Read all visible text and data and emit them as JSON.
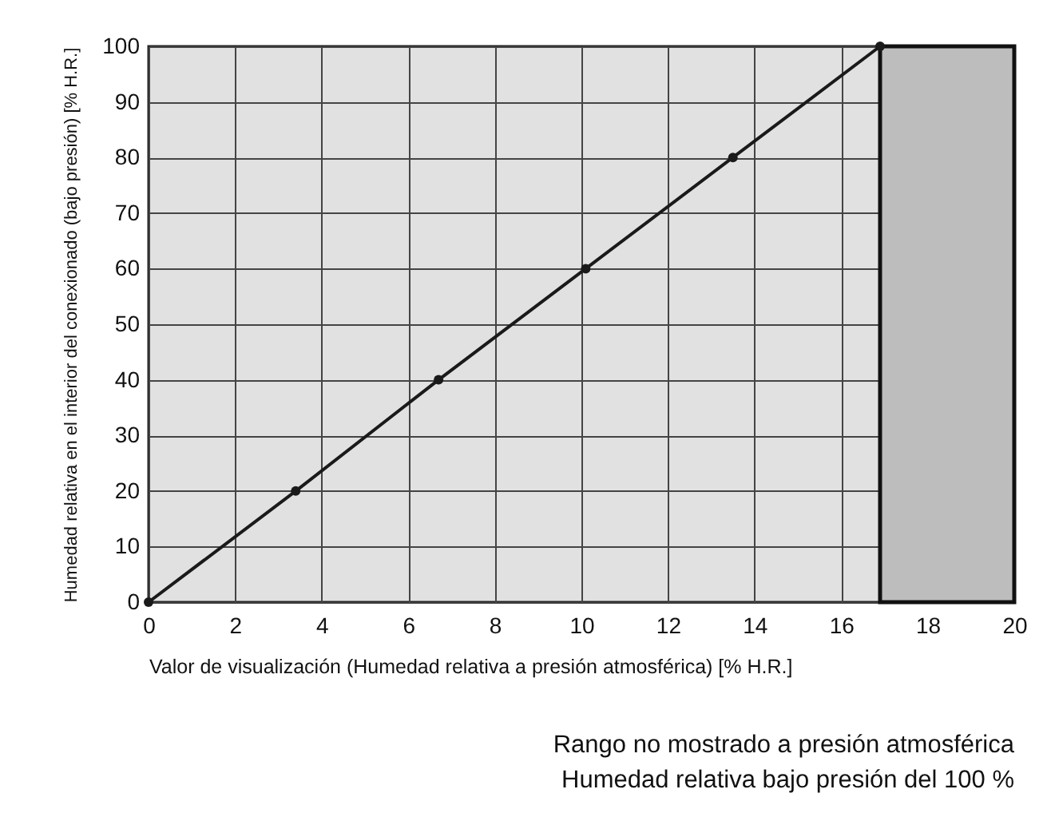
{
  "chart_data": {
    "type": "line",
    "xlabel": "Valor de visualización (Humedad relativa a presión atmosférica) [% H.R.]",
    "ylabel": "Humedad relativa en el interior del conexionado (bajo presión) [% H.R.]",
    "x": [
      0,
      3.4,
      6.7,
      10.1,
      13.5,
      16.9
    ],
    "series": [
      {
        "color": "#1a1a1a",
        "values": [
          0,
          20,
          40,
          60,
          80,
          100
        ]
      }
    ],
    "xlim": [
      0,
      20
    ],
    "xticks": [
      0,
      2,
      4,
      6,
      8,
      10,
      12,
      14,
      16,
      18,
      20
    ],
    "ylim": [
      0,
      100
    ],
    "yticks": [
      0,
      10,
      20,
      30,
      40,
      50,
      60,
      70,
      80,
      90,
      100
    ],
    "grid": true,
    "marker": "circle",
    "line_style": "solid",
    "bands": [
      {
        "axis": "x",
        "from": 16.9,
        "to": 20,
        "color": "#bdbdbd",
        "label": "Rango no mostrado a presión atmosférica\nHumedad relativa bajo presión del 100 %"
      }
    ]
  }
}
